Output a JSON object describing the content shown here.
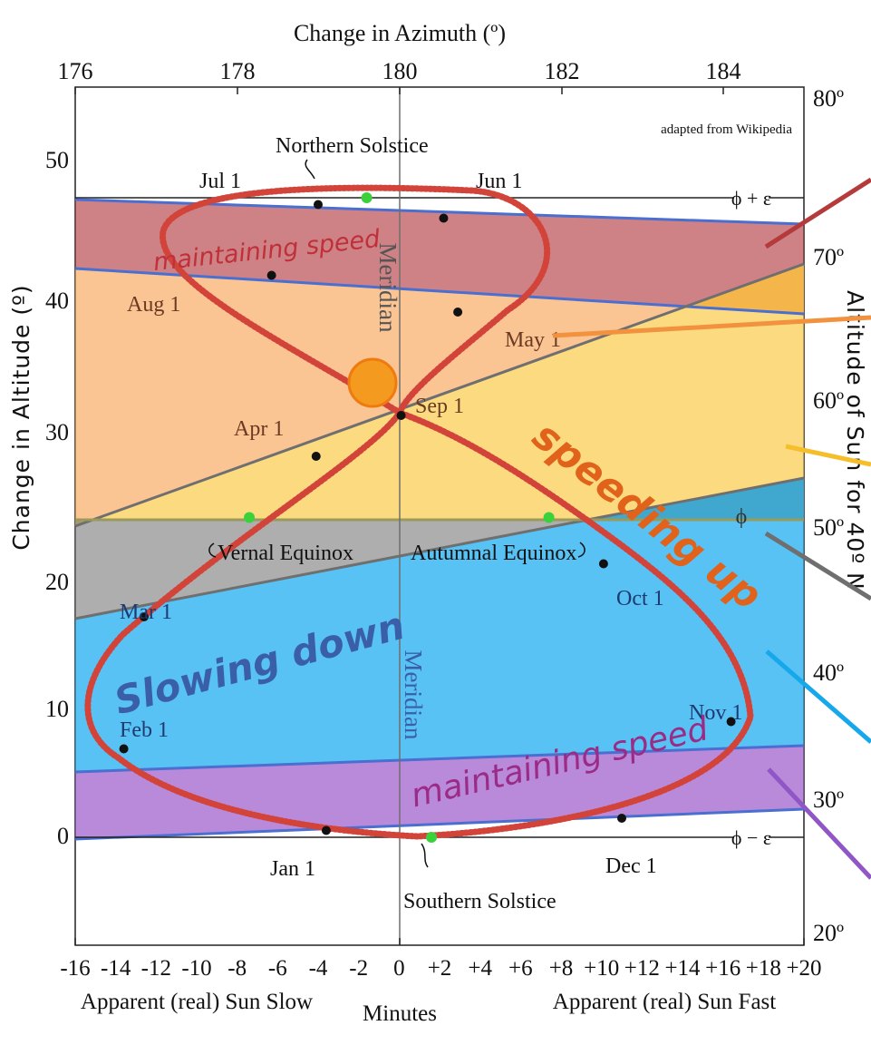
{
  "chart_data": {
    "type": "scatter",
    "title": "",
    "top_axis": {
      "label": "Change in Azimuth (º)",
      "range": [
        176,
        185
      ],
      "ticks": [
        "176",
        "178",
        "180",
        "182",
        "184"
      ]
    },
    "left_axis": {
      "label": "Change in Altitude (º)",
      "range": [
        -10,
        55
      ],
      "ticks": [
        "0",
        "10",
        "20",
        "30",
        "40",
        "50"
      ]
    },
    "right_axis": {
      "label": "Altitude of Sun for 40º N",
      "range": [
        17,
        82
      ],
      "ticks": [
        "20º",
        "30º",
        "40º",
        "50º",
        "60º",
        "70º",
        "80º"
      ]
    },
    "bottom_axis": {
      "label": "Minutes",
      "range": [
        -16,
        20
      ],
      "ticks": [
        "-16",
        "-14",
        "-12",
        "-10",
        "-8",
        "-6",
        "-4",
        "-2",
        "0",
        "+2",
        "+4",
        "+6",
        "+8",
        "+10",
        "+12",
        "+14",
        "+16",
        "+18",
        "+20"
      ],
      "left_caption": "Apparent (real) Sun Slow",
      "right_caption": "Apparent (real) Sun Fast"
    },
    "credit": "adapted from Wikipedia",
    "meridian_label": "Meridian",
    "reference_lines": [
      {
        "label": "ϕ + ε",
        "value": 47
      },
      {
        "label": "ϕ",
        "value": 23.5
      },
      {
        "label": "ϕ − ε",
        "value": 0
      }
    ],
    "analemma": {
      "name": "",
      "color": "#d2433a",
      "points": [
        {
          "month": "Jan 1",
          "minutes": -3.6,
          "altitude": 0.5
        },
        {
          "month": "Feb 1",
          "minutes": -13.6,
          "altitude": 6.5
        },
        {
          "month": "Mar 1",
          "minutes": -12.6,
          "altitude": 16.2
        },
        {
          "month": "Apr 1",
          "minutes": -4.1,
          "altitude": 28.0
        },
        {
          "month": "May 1",
          "minutes": 2.9,
          "altitude": 38.6
        },
        {
          "month": "Jun 1",
          "minutes": 2.2,
          "altitude": 45.5
        },
        {
          "month": "Jul 1",
          "minutes": -4.0,
          "altitude": 46.5
        },
        {
          "month": "Aug 1",
          "minutes": -6.3,
          "altitude": 41.3
        },
        {
          "month": "Sep 1",
          "minutes": 0.1,
          "altitude": 31.0
        },
        {
          "month": "Oct 1",
          "minutes": 10.1,
          "altitude": 20.1
        },
        {
          "month": "Nov 1",
          "minutes": 16.4,
          "altitude": 8.5
        },
        {
          "month": "Dec 1",
          "minutes": 11.0,
          "altitude": 1.4
        }
      ],
      "events": [
        {
          "label": "Northern Solstice",
          "minutes": -1.6,
          "altitude": 47
        },
        {
          "label": "Vernal Equinox",
          "minutes": -7.4,
          "altitude": 23.5
        },
        {
          "label": "Autumnal Equinox",
          "minutes": 7.4,
          "altitude": 23.5
        },
        {
          "label": "Southern Solstice",
          "minutes": 1.6,
          "altitude": 0
        }
      ],
      "month_labels": [
        "Jan 1",
        "Feb 1",
        "Mar 1",
        "Apr 1",
        "May 1",
        "Jun 1",
        "Jul 1",
        "Aug 1",
        "Sep 1",
        "Oct 1",
        "Nov 1",
        "Dec 1"
      ]
    },
    "bands": [
      {
        "label": "maintaining speed",
        "color": "#b0353a"
      },
      {
        "label": "",
        "color": "#f7a050"
      },
      {
        "label": "speeding up",
        "color": "#fbc83c"
      },
      {
        "label": "",
        "color": "#7d7d7d"
      },
      {
        "label": "Slowing down",
        "color": "#16aaee"
      },
      {
        "label": "maintaining speed",
        "color": "#9a52c9"
      }
    ],
    "label_colors": {
      "red": "#c0303a",
      "orange": "#e0621b",
      "blue": "#3a5fa8",
      "purple": "#9a2b86"
    }
  }
}
